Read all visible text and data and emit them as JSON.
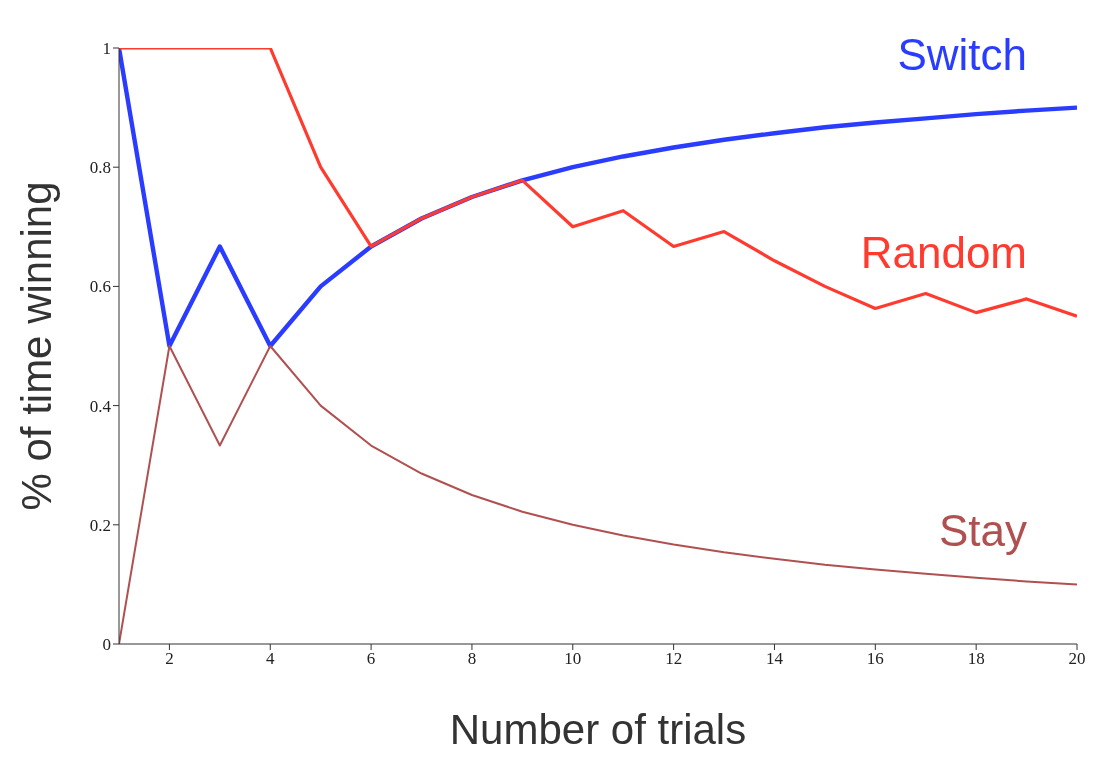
{
  "chart_data": {
    "type": "line",
    "xlabel": "Number of trials",
    "ylabel": "% of time winning",
    "x": [
      1,
      2,
      3,
      4,
      5,
      6,
      7,
      8,
      9,
      10,
      11,
      12,
      13,
      14,
      15,
      16,
      17,
      18,
      19,
      20
    ],
    "series": [
      {
        "name": "Switch",
        "color": "#2a3cff",
        "values": [
          1,
          0.5,
          0.667,
          0.5,
          0.6,
          0.667,
          0.714,
          0.75,
          0.778,
          0.8,
          0.818,
          0.833,
          0.846,
          0.857,
          0.867,
          0.875,
          0.882,
          0.889,
          0.895,
          0.9
        ]
      },
      {
        "name": "Random",
        "color": "#ff3b2f",
        "values": [
          1,
          1,
          1,
          1,
          0.8,
          0.667,
          0.714,
          0.75,
          0.778,
          0.7,
          0.727,
          0.667,
          0.692,
          0.643,
          0.6,
          0.563,
          0.588,
          0.556,
          0.579,
          0.55
        ]
      },
      {
        "name": "Stay",
        "color": "#b05050",
        "values": [
          0,
          0.5,
          0.333,
          0.5,
          0.4,
          0.333,
          0.286,
          0.25,
          0.222,
          0.2,
          0.182,
          0.167,
          0.154,
          0.143,
          0.133,
          0.125,
          0.118,
          0.111,
          0.105,
          0.1
        ]
      }
    ],
    "xlim": [
      1,
      20
    ],
    "xticks": [
      2,
      4,
      6,
      8,
      10,
      12,
      14,
      16,
      18,
      20
    ],
    "ylim": [
      0,
      1
    ],
    "yticks": [
      0,
      0.2,
      0.4,
      0.6,
      0.8,
      1
    ],
    "grid": false,
    "legend": false,
    "marker": "none",
    "line_style": "solid"
  }
}
